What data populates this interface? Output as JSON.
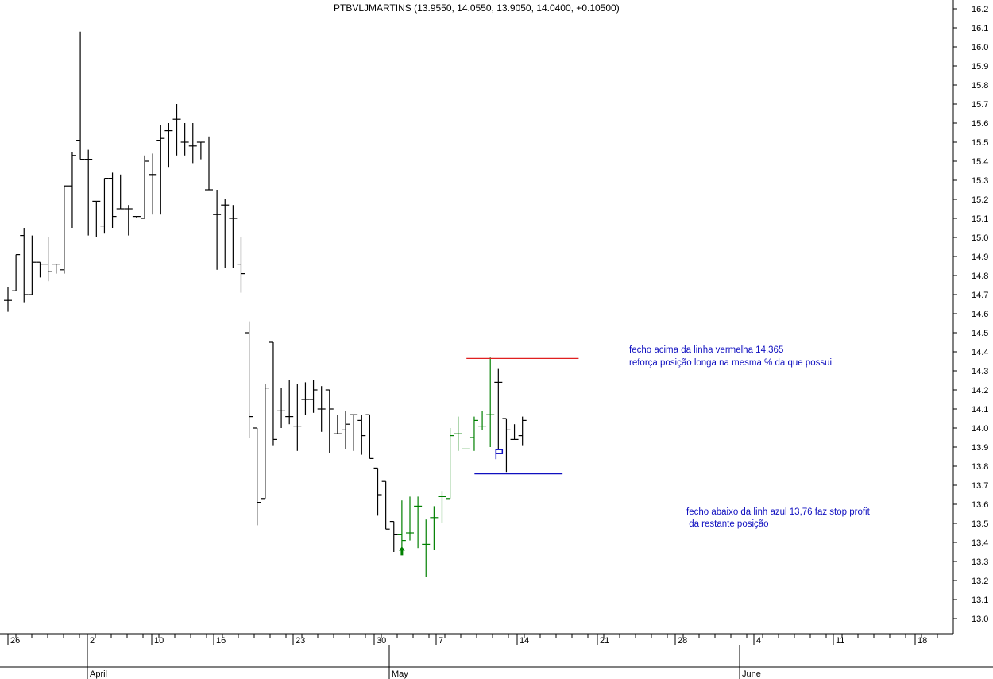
{
  "chart_data": {
    "type": "ohlc",
    "title": "PTBVLJMARTINS (13.9550, 14.0550, 13.9050, 14.0400, +0.10500)",
    "ylim": [
      12.95,
      16.32
    ],
    "y_ticks": [
      "16.3",
      "16.2",
      "16.1",
      "16.0",
      "15.9",
      "15.8",
      "15.7",
      "15.6",
      "15.5",
      "15.4",
      "15.3",
      "15.2",
      "15.1",
      "15.0",
      "14.9",
      "14.8",
      "14.7",
      "14.6",
      "14.5",
      "14.4",
      "14.3",
      "14.2",
      "14.1",
      "14.0",
      "13.9",
      "13.8",
      "13.7",
      "13.6",
      "13.5",
      "13.4",
      "13.3",
      "13.2",
      "13.1",
      "13.0"
    ],
    "x_day_labels": [
      "26",
      "2",
      "10",
      "16",
      "23",
      "30",
      "7",
      "14",
      "21",
      "28",
      "4",
      "11",
      "18"
    ],
    "x_month_labels": [
      "April",
      "May",
      "June"
    ],
    "colors": {
      "bar_default": "#000000",
      "bar_up": "#008000",
      "red_line": "#e02020",
      "blue_line": "#1010c0",
      "text_blue": "#1010c0"
    },
    "bars": [
      {
        "o": 14.67,
        "h": 14.74,
        "l": 14.61,
        "c": 14.67,
        "color": "black"
      },
      {
        "o": 14.72,
        "h": 14.91,
        "l": 14.72,
        "c": 14.91,
        "color": "black"
      },
      {
        "o": 15.01,
        "h": 15.05,
        "l": 14.66,
        "c": 14.7,
        "color": "black"
      },
      {
        "o": 14.7,
        "h": 15.01,
        "l": 14.7,
        "c": 14.87,
        "color": "black"
      },
      {
        "o": 14.87,
        "h": 14.87,
        "l": 14.79,
        "c": 14.86,
        "color": "black"
      },
      {
        "o": 14.86,
        "h": 15.0,
        "l": 14.77,
        "c": 14.82,
        "color": "black"
      },
      {
        "o": 14.86,
        "h": 14.86,
        "l": 14.81,
        "c": 14.86,
        "color": "black"
      },
      {
        "o": 14.83,
        "h": 15.27,
        "l": 14.81,
        "c": 15.27,
        "color": "black"
      },
      {
        "o": 15.27,
        "h": 15.45,
        "l": 15.05,
        "c": 15.43,
        "color": "black"
      },
      {
        "o": 15.51,
        "h": 16.08,
        "l": 15.41,
        "c": 15.41,
        "color": "black"
      },
      {
        "o": 15.41,
        "h": 15.46,
        "l": 15.01,
        "c": 15.41,
        "color": "black"
      },
      {
        "o": 15.19,
        "h": 15.19,
        "l": 15.0,
        "c": 15.19,
        "color": "black"
      },
      {
        "o": 15.06,
        "h": 15.31,
        "l": 15.02,
        "c": 15.31,
        "color": "black"
      },
      {
        "o": 15.31,
        "h": 15.34,
        "l": 15.05,
        "c": 15.11,
        "color": "black"
      },
      {
        "o": 15.15,
        "h": 15.33,
        "l": 15.15,
        "c": 15.15,
        "color": "black"
      },
      {
        "o": 15.15,
        "h": 15.17,
        "l": 15.01,
        "c": 15.15,
        "color": "black"
      },
      {
        "o": 15.11,
        "h": 15.11,
        "l": 15.1,
        "c": 15.11,
        "color": "black"
      },
      {
        "o": 15.1,
        "h": 15.43,
        "l": 15.1,
        "c": 15.4,
        "color": "black"
      },
      {
        "o": 15.33,
        "h": 15.44,
        "l": 15.12,
        "c": 15.33,
        "color": "black"
      },
      {
        "o": 15.51,
        "h": 15.59,
        "l": 15.12,
        "c": 15.52,
        "color": "black"
      },
      {
        "o": 15.56,
        "h": 15.6,
        "l": 15.37,
        "c": 15.56,
        "color": "black"
      },
      {
        "o": 15.62,
        "h": 15.7,
        "l": 15.43,
        "c": 15.62,
        "color": "black"
      },
      {
        "o": 15.5,
        "h": 15.6,
        "l": 15.43,
        "c": 15.5,
        "color": "black"
      },
      {
        "o": 15.48,
        "h": 15.6,
        "l": 15.39,
        "c": 15.48,
        "color": "black"
      },
      {
        "o": 15.5,
        "h": 15.5,
        "l": 15.41,
        "c": 15.5,
        "color": "black"
      },
      {
        "o": 15.25,
        "h": 15.53,
        "l": 15.25,
        "c": 15.25,
        "color": "black"
      },
      {
        "o": 15.12,
        "h": 15.25,
        "l": 14.83,
        "c": 15.12,
        "color": "black"
      },
      {
        "o": 15.17,
        "h": 15.2,
        "l": 14.84,
        "c": 15.17,
        "color": "black"
      },
      {
        "o": 15.1,
        "h": 15.17,
        "l": 14.84,
        "c": 15.1,
        "color": "black"
      },
      {
        "o": 14.86,
        "h": 15.0,
        "l": 14.71,
        "c": 14.81,
        "color": "black"
      },
      {
        "o": 14.5,
        "h": 14.56,
        "l": 13.95,
        "c": 14.06,
        "color": "black"
      },
      {
        "o": 14.0,
        "h": 14.0,
        "l": 13.49,
        "c": 13.61,
        "color": "black"
      },
      {
        "o": 13.63,
        "h": 14.23,
        "l": 13.63,
        "c": 14.21,
        "color": "black"
      },
      {
        "o": 14.45,
        "h": 14.45,
        "l": 13.91,
        "c": 13.94,
        "color": "black"
      },
      {
        "o": 14.09,
        "h": 14.21,
        "l": 14.0,
        "c": 14.09,
        "color": "black"
      },
      {
        "o": 14.06,
        "h": 14.25,
        "l": 14.02,
        "c": 14.06,
        "color": "black"
      },
      {
        "o": 14.01,
        "h": 14.23,
        "l": 13.88,
        "c": 14.01,
        "color": "black"
      },
      {
        "o": 14.15,
        "h": 14.24,
        "l": 14.07,
        "c": 14.15,
        "color": "black"
      },
      {
        "o": 14.15,
        "h": 14.25,
        "l": 14.08,
        "c": 14.2,
        "color": "black"
      },
      {
        "o": 14.1,
        "h": 14.22,
        "l": 13.98,
        "c": 14.1,
        "color": "black"
      },
      {
        "o": 14.2,
        "h": 14.2,
        "l": 13.87,
        "c": 14.1,
        "color": "black"
      },
      {
        "o": 13.97,
        "h": 14.07,
        "l": 13.97,
        "c": 13.97,
        "color": "black"
      },
      {
        "o": 13.99,
        "h": 14.09,
        "l": 13.89,
        "c": 14.02,
        "color": "black"
      },
      {
        "o": 14.07,
        "h": 14.07,
        "l": 13.88,
        "c": 14.07,
        "color": "black"
      },
      {
        "o": 14.04,
        "h": 14.07,
        "l": 13.86,
        "c": 13.96,
        "color": "black"
      },
      {
        "o": 14.07,
        "h": 14.07,
        "l": 13.84,
        "c": 13.84,
        "color": "black"
      },
      {
        "o": 13.79,
        "h": 13.79,
        "l": 13.54,
        "c": 13.65,
        "color": "black"
      },
      {
        "o": 13.72,
        "h": 13.72,
        "l": 13.47,
        "c": 13.47,
        "color": "black"
      },
      {
        "o": 13.51,
        "h": 13.51,
        "l": 13.35,
        "c": 13.44,
        "color": "black"
      },
      {
        "o": 13.44,
        "h": 13.62,
        "l": 13.35,
        "c": 13.41,
        "color": "green"
      },
      {
        "o": 13.45,
        "h": 13.64,
        "l": 13.41,
        "c": 13.45,
        "color": "green"
      },
      {
        "o": 13.59,
        "h": 13.64,
        "l": 13.37,
        "c": 13.59,
        "color": "green"
      },
      {
        "o": 13.39,
        "h": 13.52,
        "l": 13.22,
        "c": 13.39,
        "color": "green"
      },
      {
        "o": 13.53,
        "h": 13.59,
        "l": 13.36,
        "c": 13.53,
        "color": "green"
      },
      {
        "o": 13.64,
        "h": 13.67,
        "l": 13.5,
        "c": 13.64,
        "color": "green"
      },
      {
        "o": 13.63,
        "h": 14.0,
        "l": 13.63,
        "c": 13.96,
        "color": "green"
      },
      {
        "o": 13.97,
        "h": 14.06,
        "l": 13.88,
        "c": 13.97,
        "color": "green"
      },
      {
        "o": 13.89,
        "h": 13.89,
        "l": 13.89,
        "c": 13.89,
        "color": "green"
      },
      {
        "o": 13.95,
        "h": 14.06,
        "l": 13.88,
        "c": 14.04,
        "color": "green"
      },
      {
        "o": 14.01,
        "h": 14.09,
        "l": 13.99,
        "c": 14.01,
        "color": "green"
      },
      {
        "o": 14.07,
        "h": 14.37,
        "l": 13.9,
        "c": 14.07,
        "color": "green"
      },
      {
        "o": 14.24,
        "h": 14.31,
        "l": 13.89,
        "c": 14.24,
        "color": "black"
      },
      {
        "o": 14.05,
        "h": 14.05,
        "l": 13.77,
        "c": 13.99,
        "color": "black"
      },
      {
        "o": 13.94,
        "h": 14.02,
        "l": 13.94,
        "c": 13.94,
        "color": "black"
      },
      {
        "o": 13.96,
        "h": 14.06,
        "l": 13.91,
        "c": 14.04,
        "color": "black"
      }
    ],
    "hlines": [
      {
        "name": "red-resistance",
        "value": 14.365,
        "from_bar": 60,
        "to_bar": 70,
        "color": "#e02020"
      },
      {
        "name": "blue-support",
        "value": 13.76,
        "from_bar": 61,
        "to_bar": 68,
        "color": "#1010c0"
      }
    ],
    "annotations": {
      "red_note_line1": "fecho acima da linha vermelha 14,365",
      "red_note_line2": "reforça posição longa na mesma % da que possui",
      "blue_note_line1": "fecho abaixo da linh azul  13,76 faz stop profit",
      "blue_note_line2": " da restante posição"
    },
    "signals": [
      {
        "type": "buy-arrow",
        "bar": 49,
        "price": 13.34,
        "color": "#008000"
      },
      {
        "type": "flag",
        "bar": 61,
        "price": 13.87,
        "color": "#1010c0"
      }
    ]
  }
}
